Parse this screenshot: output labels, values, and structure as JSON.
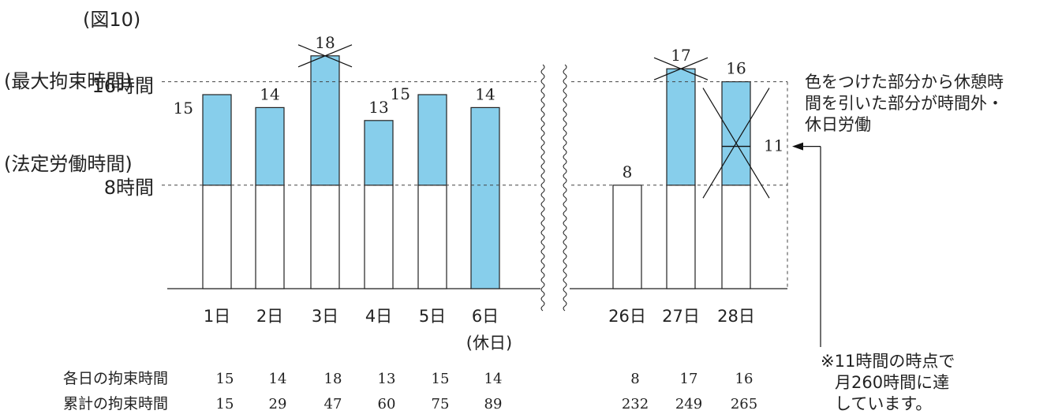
{
  "figure_label": "(図10)",
  "reference_lines": [
    {
      "name_label": "(最大拘束時間)",
      "value_label": "16時間",
      "value": 16
    },
    {
      "name_label": "(法定労働時間)",
      "value_label": "8時間",
      "value": 8
    }
  ],
  "chart_data": {
    "type": "bar",
    "categories": [
      "1日",
      "2日",
      "3日",
      "4日",
      "5日",
      "6日",
      "26日",
      "27日",
      "28日"
    ],
    "values": [
      15,
      14,
      18,
      13,
      15,
      14,
      8,
      17,
      16
    ],
    "holiday_note": "(休日)",
    "colors": {
      "fill": "#87ceeb",
      "outline": "#222222"
    },
    "crossed_out": [
      "3日",
      "27日",
      "28日"
    ],
    "annotation_value": "11",
    "annotation_at": 11,
    "axis_break": true,
    "ylim": [
      0,
      19
    ]
  },
  "note_right": "色をつけた部分から休憩時間を引いた部分が時間外・休日労働",
  "note_bottom": "※11時間の時点で月260時間に達しています。",
  "table": {
    "row1_label": "各日の拘束時間",
    "row1_values": [
      "15",
      "14",
      "18",
      "13",
      "15",
      "14",
      "8",
      "17",
      "16"
    ],
    "row2_label": "累計の拘束時間",
    "row2_values": [
      "15",
      "29",
      "47",
      "60",
      "75",
      "89",
      "232",
      "249",
      "265"
    ]
  }
}
